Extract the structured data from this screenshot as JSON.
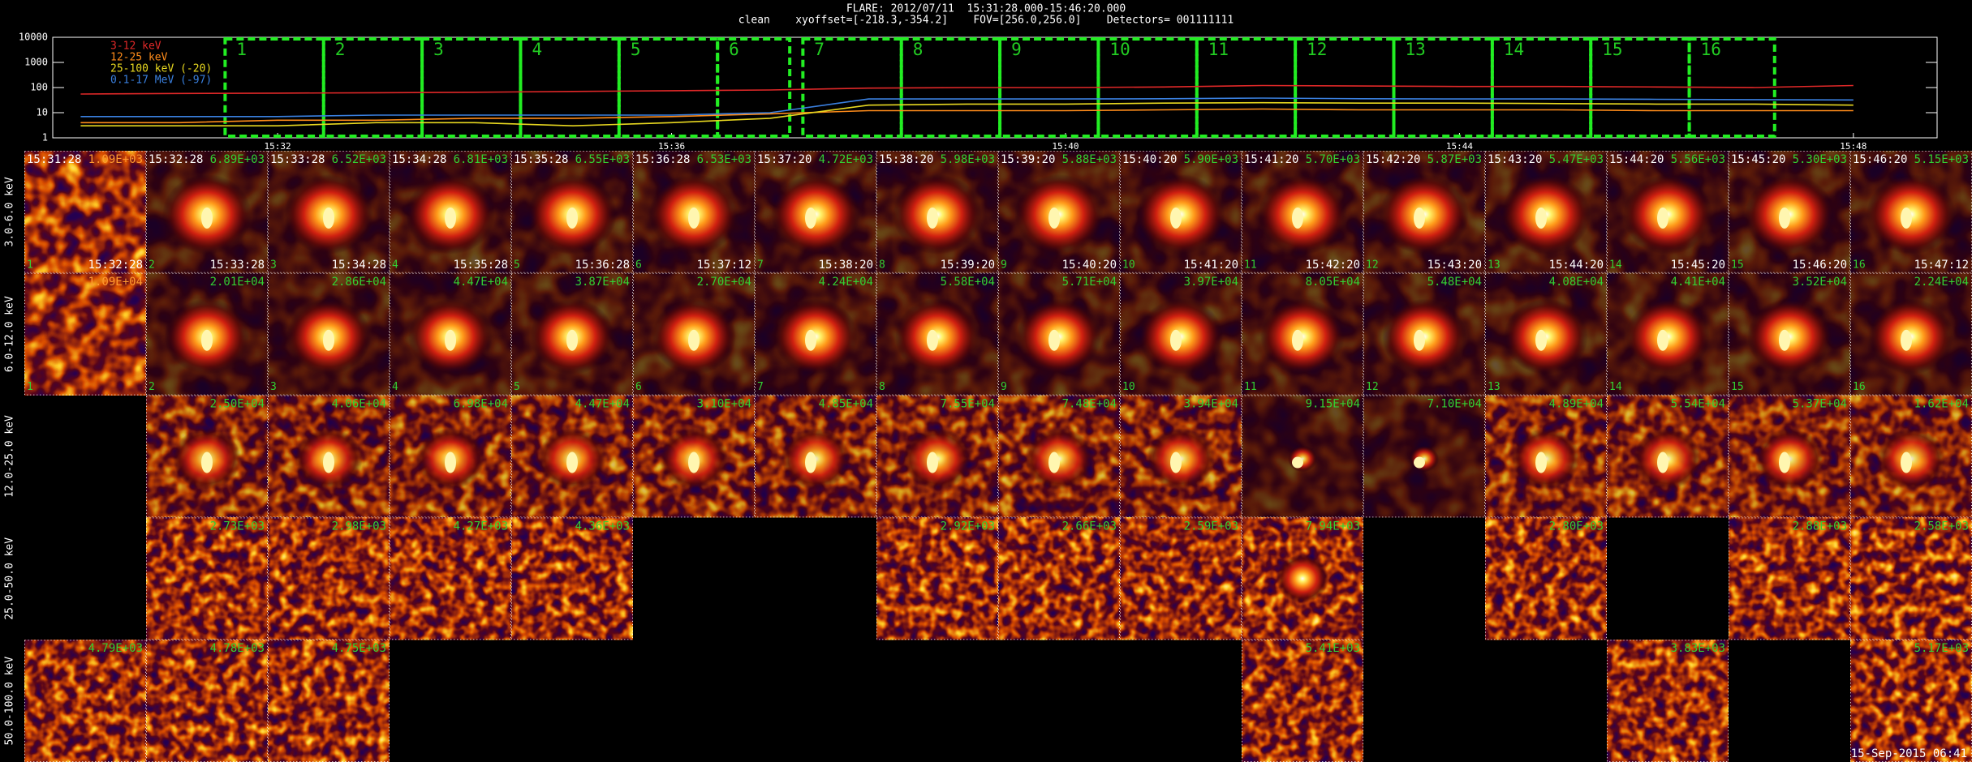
{
  "header": {
    "title": "FLARE: 2012/07/11  15:31:28.000-15:46:20.000",
    "subtitle": "clean    xyoffset=[-218.3,-354.2]    FOV=[256.0,256.0]    Detectors= 001111111"
  },
  "chart_data": {
    "type": "line",
    "log_y": true,
    "legend": "top-left",
    "x": [
      "15:30",
      "15:31",
      "15:32",
      "15:33",
      "15:34",
      "15:35",
      "15:36",
      "15:37",
      "15:38",
      "15:39",
      "15:40",
      "15:41",
      "15:42",
      "15:43",
      "15:44",
      "15:45",
      "15:46",
      "15:47",
      "15:48"
    ],
    "xlim": [
      "15:29:43",
      "15:48:51"
    ],
    "xticks": [
      "15:32",
      "15:36",
      "15:40",
      "15:44",
      "15:48"
    ],
    "ylim": [
      1,
      10000
    ],
    "yticks": [
      1,
      10,
      100,
      1000,
      10000
    ],
    "series": [
      {
        "name": "3-12 keV",
        "color": "#e02828",
        "values": [
          55,
          58,
          60,
          62,
          65,
          70,
          75,
          80,
          95,
          100,
          100,
          105,
          120,
          115,
          110,
          110,
          105,
          100,
          120
        ]
      },
      {
        "name": "12-25 keV",
        "color": "#ff8c1a",
        "values": [
          4,
          4,
          5,
          5,
          6,
          6,
          7,
          9,
          12,
          12,
          12,
          13,
          14,
          13,
          13,
          13,
          12,
          12,
          12
        ]
      },
      {
        "name": "25-100 keV (-20)",
        "color": "#e8d820",
        "values": [
          3,
          3,
          3,
          4,
          4,
          3,
          4,
          6,
          20,
          22,
          22,
          24,
          25,
          24,
          24,
          23,
          22,
          22,
          20
        ]
      },
      {
        "name": "0.1-17 MeV (-97)",
        "color": "#3a80e0",
        "values": [
          7,
          7,
          7,
          8,
          8,
          8,
          8,
          10,
          35,
          35,
          35,
          36,
          38,
          36,
          35,
          35,
          34,
          33,
          32
        ]
      }
    ],
    "intervals": [
      {
        "label": "1",
        "start": "15:31:28",
        "end": "15:32:28"
      },
      {
        "label": "2",
        "start": "15:32:28",
        "end": "15:33:28"
      },
      {
        "label": "3",
        "start": "15:33:28",
        "end": "15:34:28"
      },
      {
        "label": "4",
        "start": "15:34:28",
        "end": "15:35:28"
      },
      {
        "label": "5",
        "start": "15:35:28",
        "end": "15:36:28"
      },
      {
        "label": "6",
        "start": "15:36:28",
        "end": "15:37:12"
      },
      {
        "label": "7",
        "start": "15:37:20",
        "end": "15:38:20"
      },
      {
        "label": "8",
        "start": "15:38:20",
        "end": "15:39:20"
      },
      {
        "label": "9",
        "start": "15:39:20",
        "end": "15:40:20"
      },
      {
        "label": "10",
        "start": "15:40:20",
        "end": "15:41:20"
      },
      {
        "label": "11",
        "start": "15:41:20",
        "end": "15:42:20"
      },
      {
        "label": "12",
        "start": "15:42:20",
        "end": "15:43:20"
      },
      {
        "label": "13",
        "start": "15:43:20",
        "end": "15:44:20"
      },
      {
        "label": "14",
        "start": "15:44:20",
        "end": "15:45:20"
      },
      {
        "label": "15",
        "start": "15:45:20",
        "end": "15:46:20"
      },
      {
        "label": "16",
        "start": "15:46:20",
        "end": "15:47:12"
      }
    ]
  },
  "image_grid": {
    "rows": [
      {
        "label": "3.0-6.0 keV",
        "peaks": [
          "1.09E+03",
          "6.89E+03",
          "6.52E+03",
          "6.81E+03",
          "6.55E+03",
          "6.53E+03",
          "4.72E+03",
          "5.98E+03",
          "5.88E+03",
          "5.90E+03",
          "5.70E+03",
          "5.87E+03",
          "5.47E+03",
          "5.56E+03",
          "5.30E+03",
          "5.15E+03"
        ]
      },
      {
        "label": "6.0-12.0 keV",
        "peaks": [
          "1.09E+04",
          "2.01E+04",
          "2.86E+04",
          "4.47E+04",
          "3.87E+04",
          "2.70E+04",
          "4.24E+04",
          "5.58E+04",
          "5.71E+04",
          "3.97E+04",
          "8.05E+04",
          "5.48E+04",
          "4.08E+04",
          "4.41E+04",
          "3.52E+04",
          "2.24E+04"
        ]
      },
      {
        "label": "12.0-25.0 keV",
        "peaks": [
          null,
          "2.50E+04",
          "4.06E+04",
          "6.98E+04",
          "4.47E+04",
          "3.10E+04",
          "4.85E+04",
          "7.55E+04",
          "7.48E+04",
          "3.94E+04",
          "9.15E+04",
          "7.10E+04",
          "4.89E+04",
          "5.54E+04",
          "5.37E+04",
          "1.62E+04"
        ]
      },
      {
        "label": "25.0-50.0 keV",
        "peaks": [
          null,
          "2.73E+03",
          "2.98E+03",
          "4.27E+03",
          "4.36E+03",
          null,
          null,
          "2.92E+03",
          "2.66E+03",
          "2.59E+03",
          "7.94E+03",
          null,
          "2.80E+03",
          null,
          "2.88E+03",
          "2.58E+03"
        ]
      },
      {
        "label": "50.0-100.0 keV",
        "peaks": [
          "4.79E+03",
          "4.78E+03",
          "4.75E+03",
          null,
          null,
          null,
          null,
          null,
          null,
          null,
          "5.41E+03",
          null,
          null,
          "3.83E+03",
          null,
          "5.17E+03"
        ]
      }
    ],
    "footer": "15-Sep-2015 06:41"
  }
}
